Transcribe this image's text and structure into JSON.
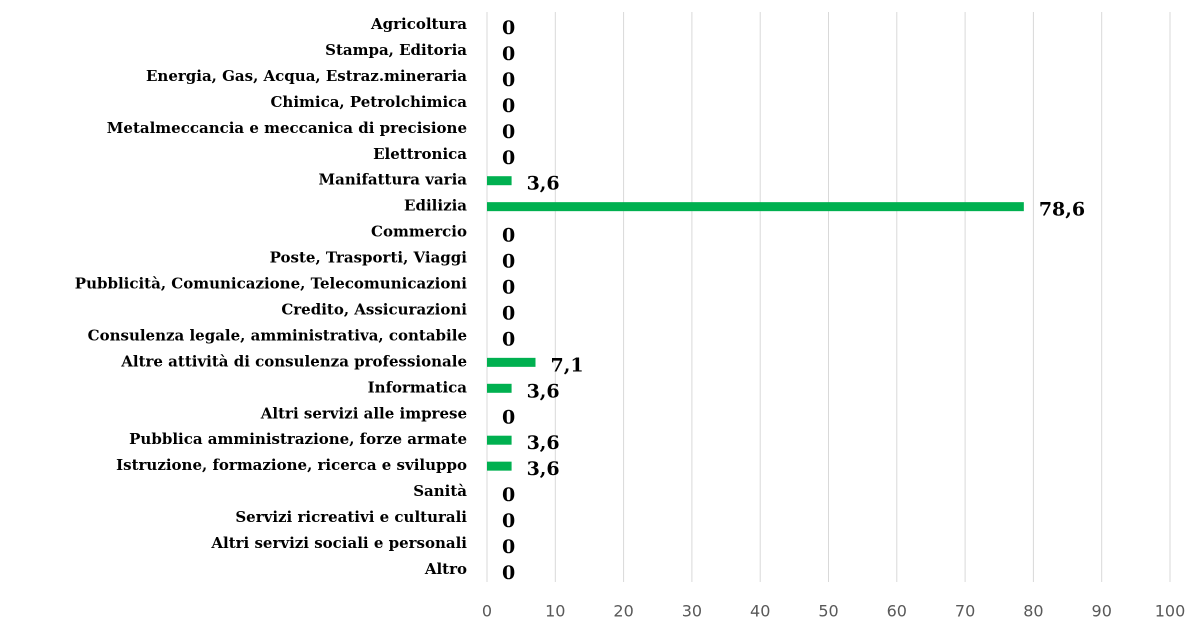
{
  "chart_data": {
    "type": "barh",
    "categories": [
      "Agricoltura",
      "Stampa, Editoria",
      "Energia, Gas, Acqua, Estraz.mineraria",
      "Chimica, Petrolchimica",
      "Metalmeccancia e meccanica di precisione",
      "Elettronica",
      "Manifattura varia",
      "Edilizia",
      "Commercio",
      "Poste, Trasporti, Viaggi",
      "Pubblicità, Comunicazione, Telecomunicazioni",
      "Credito, Assicurazioni",
      "Consulenza legale, amministrativa, contabile",
      "Altre attività di consulenza professionale",
      "Informatica",
      "Altri servizi alle imprese",
      "Pubblica amministrazione, forze armate",
      "Istruzione, formazione, ricerca e sviluppo",
      "Sanità",
      "Servizi ricreativi e culturali",
      "Altri servizi sociali e personali",
      "Altro"
    ],
    "values": [
      0,
      0,
      0,
      0,
      0,
      0,
      3.6,
      78.6,
      0,
      0,
      0,
      0,
      0,
      7.1,
      3.6,
      0,
      3.6,
      3.6,
      0,
      0,
      0,
      0
    ],
    "value_labels": [
      "0",
      "0",
      "0",
      "0",
      "0",
      "0",
      "3,6",
      "78,6",
      "0",
      "0",
      "0",
      "0",
      "0",
      "7,1",
      "3,6",
      "0",
      "3,6",
      "3,6",
      "0",
      "0",
      "0",
      "0"
    ],
    "color": "#00b050",
    "xlim": [
      0,
      100
    ],
    "xticks": [
      0,
      10,
      20,
      30,
      40,
      50,
      60,
      70,
      80,
      90,
      100
    ],
    "grid": true
  }
}
